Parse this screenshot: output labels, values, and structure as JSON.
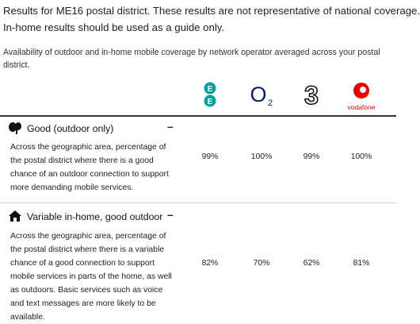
{
  "header": {
    "lines": [
      "Results for ME16 postal district. These results are not representative of national coverage.",
      "In-home results should be used as a guide only."
    ]
  },
  "subtitle": [
    "Availability of outdoor and in-home mobile coverage by network operator averaged across your postal",
    "district."
  ],
  "logos": {
    "ee": [
      "E",
      "E"
    ],
    "o2": [
      "O",
      "2"
    ],
    "three": "3",
    "vodafone": "vodafone"
  },
  "rows": [
    {
      "title": "Good (outdoor only)",
      "toggle": "–",
      "description": [
        "Across the geographic area, percentage of",
        "the postal district where there is a good",
        "chance of an outdoor connection to support",
        "more demanding mobile services."
      ],
      "values": [
        "99%",
        "100%",
        "99%",
        "100%"
      ]
    },
    {
      "title": "Variable in-home, good outdoor",
      "toggle": "–",
      "description": [
        "Across the geographic area, percentage of",
        "the postal district where there is a variable",
        "chance of a good connection to support",
        "mobile services in parts of the home, as well",
        "as outdoors. Basic services such as voice",
        "and text messages are more likely to be",
        "available."
      ],
      "values": [
        "82%",
        "70%",
        "62%",
        "81%"
      ]
    }
  ]
}
